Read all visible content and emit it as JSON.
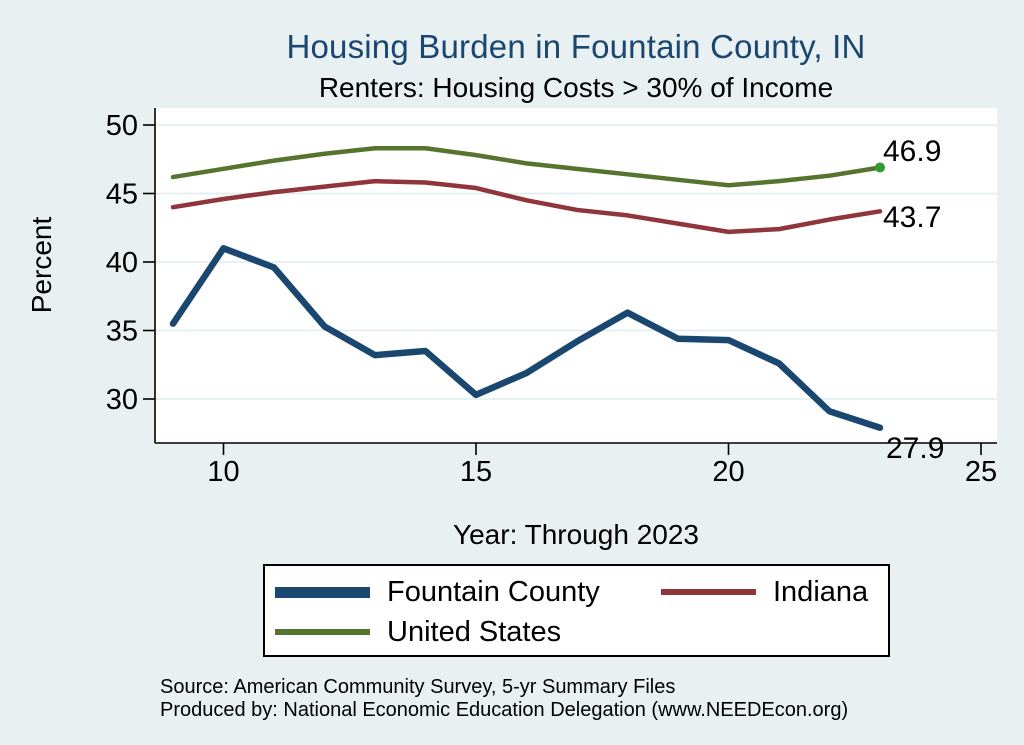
{
  "colors": {
    "background": "#e8f0f2",
    "plot_background": "#ffffff",
    "gridline": "#dfecef",
    "axis": "#000000",
    "title": "#1a476f",
    "text": "#000000",
    "marker_green": "#339933",
    "legend_border": "#000000"
  },
  "chart_data": {
    "type": "line",
    "title": "Housing Burden in Fountain County, IN",
    "subtitle": "Renters: Housing Costs > 30% of Income",
    "xlabel": "Year: Through 2023",
    "ylabel": "Percent",
    "x_years": [
      9,
      10,
      11,
      12,
      13,
      14,
      15,
      16,
      17,
      18,
      19,
      20,
      21,
      22,
      23
    ],
    "xticks": [
      10,
      15,
      20,
      25
    ],
    "yticks": [
      30,
      35,
      40,
      45,
      50
    ],
    "xlim": [
      8.6,
      25.3
    ],
    "ylim": [
      26.8,
      51.3
    ],
    "grid": "horizontal",
    "legend_position": "bottom",
    "series": [
      {
        "name": "Fountain County",
        "color": "#1a476f",
        "line_width": 6.5,
        "end_label": "27.9",
        "end_marker": false,
        "values": [
          35.5,
          41.0,
          39.6,
          35.3,
          33.2,
          33.5,
          30.3,
          31.9,
          34.2,
          36.3,
          34.4,
          34.3,
          32.6,
          29.1,
          27.9
        ]
      },
      {
        "name": "Indiana",
        "color": "#90353b",
        "line_width": 4.5,
        "end_label": "43.7",
        "end_marker": false,
        "values": [
          44.0,
          44.6,
          45.1,
          45.5,
          45.9,
          45.8,
          45.4,
          44.5,
          43.8,
          43.4,
          42.8,
          42.2,
          42.4,
          43.1,
          43.7
        ]
      },
      {
        "name": "United States",
        "color": "#55752f",
        "line_width": 4.5,
        "end_label": "46.9",
        "end_marker": true,
        "values": [
          46.2,
          46.8,
          47.4,
          47.9,
          48.3,
          48.3,
          47.8,
          47.2,
          46.8,
          46.4,
          46.0,
          45.6,
          45.9,
          46.3,
          46.9
        ]
      }
    ]
  },
  "footer": {
    "line1": "Source: American Community Survey, 5-yr Summary Files",
    "line2": "Produced by: National Economic Education Delegation (www.NEEDEcon.org)"
  }
}
